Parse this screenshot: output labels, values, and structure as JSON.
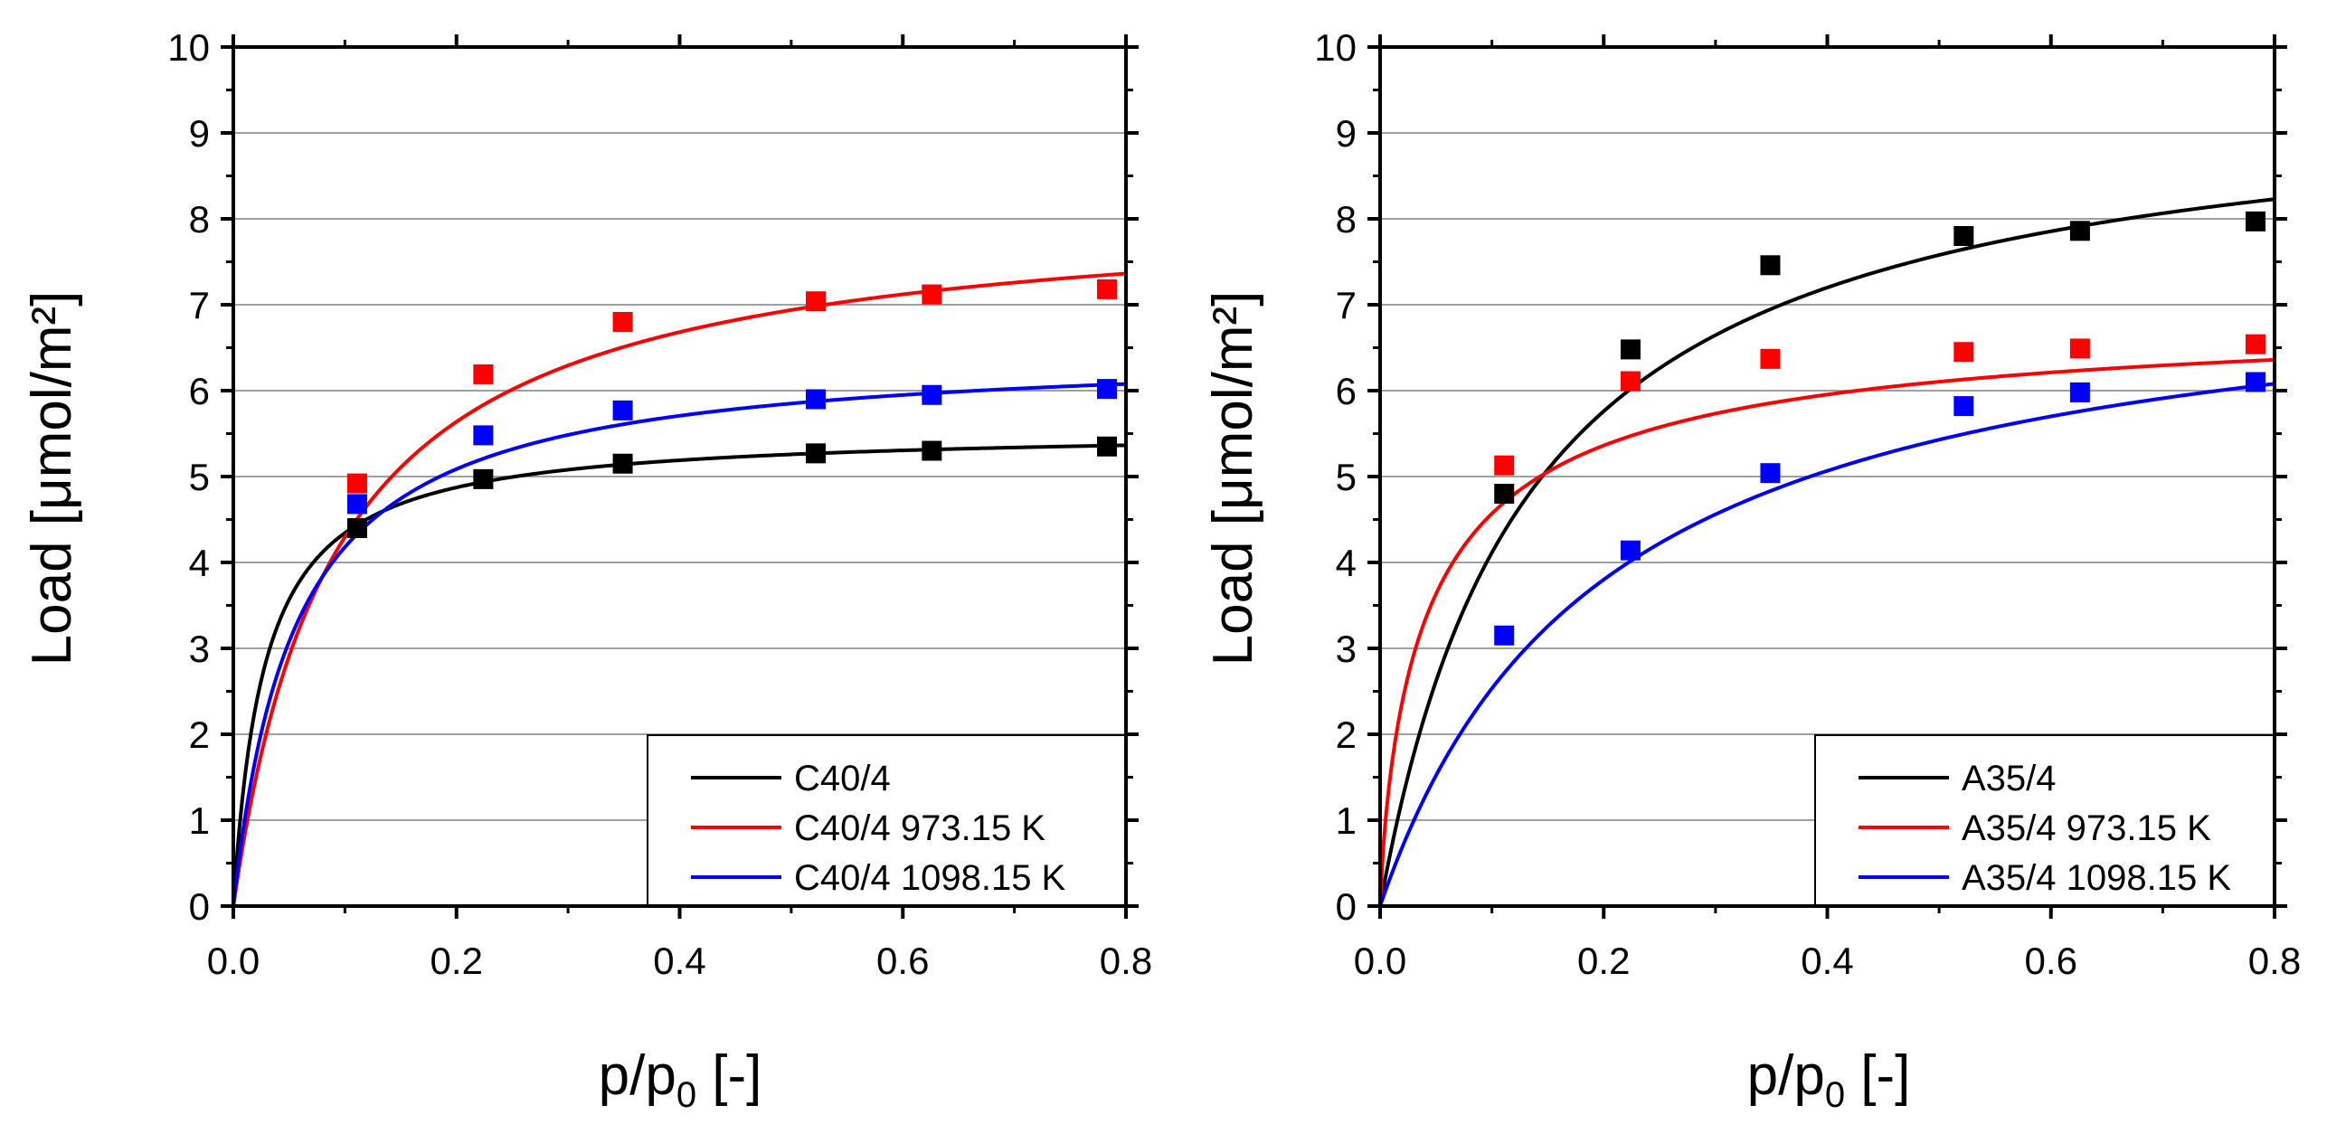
{
  "chart_data": [
    {
      "type": "scatter",
      "name": "left-panel",
      "title": "",
      "xlabel_main": "p/p",
      "xlabel_sub": "0",
      "xlabel_tail": " [-]",
      "ylabel": "Load [μmol/m²]",
      "xlim": [
        0.0,
        0.8
      ],
      "ylim": [
        0,
        10
      ],
      "xticks": [
        "0.0",
        "0.2",
        "0.4",
        "0.6",
        "0.8"
      ],
      "yticks": [
        "0",
        "1",
        "2",
        "3",
        "4",
        "5",
        "6",
        "7",
        "8",
        "9",
        "10"
      ],
      "grid": "horizontal",
      "legend_position": "bottom-right",
      "series": [
        {
          "name": "C40/4",
          "color": "#000000",
          "x": [
            0.111,
            0.224,
            0.349,
            0.522,
            0.626,
            0.783
          ],
          "y": [
            4.4,
            4.97,
            5.15,
            5.27,
            5.3,
            5.35
          ],
          "fit_curve": {
            "qmax": 5.55,
            "b": 36.0,
            "n": 1.0
          }
        },
        {
          "name": "C40/4 973.15 K",
          "color": "#ff0000",
          "x": [
            0.111,
            0.224,
            0.349,
            0.522,
            0.626,
            0.783
          ],
          "y": [
            4.92,
            6.19,
            6.8,
            7.04,
            7.12,
            7.18
          ],
          "fit_curve": {
            "qmax": 8.2,
            "b": 11.0,
            "n": 1.0
          }
        },
        {
          "name": "C40/4 1098.15 K",
          "color": "#0000ff",
          "x": [
            0.111,
            0.224,
            0.349,
            0.522,
            0.626,
            0.783
          ],
          "y": [
            4.68,
            5.48,
            5.77,
            5.9,
            5.95,
            6.02
          ],
          "fit_curve": {
            "qmax": 6.5,
            "b": 18.0,
            "n": 1.0
          }
        }
      ]
    },
    {
      "type": "scatter",
      "name": "right-panel",
      "title": "",
      "xlabel_main": "p/p",
      "xlabel_sub": "0",
      "xlabel_tail": " [-]",
      "ylabel": "Load [μmol/m²]",
      "xlim": [
        0.0,
        0.8
      ],
      "ylim": [
        0,
        10
      ],
      "xticks": [
        "0.0",
        "0.2",
        "0.4",
        "0.6",
        "0.8"
      ],
      "yticks": [
        "0",
        "1",
        "2",
        "3",
        "4",
        "5",
        "6",
        "7",
        "8",
        "9",
        "10"
      ],
      "grid": "horizontal",
      "legend_position": "bottom-right",
      "series": [
        {
          "name": "A35/4",
          "color": "#000000",
          "x": [
            0.111,
            0.224,
            0.349,
            0.522,
            0.626,
            0.783
          ],
          "y": [
            4.8,
            6.48,
            7.46,
            7.8,
            7.86,
            7.97
          ],
          "fit_curve": {
            "qmax": 9.6,
            "b": 7.5,
            "n": 1.0
          }
        },
        {
          "name": "A35/4 973.15 K",
          "color": "#ff0000",
          "x": [
            0.111,
            0.224,
            0.349,
            0.522,
            0.626,
            0.783
          ],
          "y": [
            5.13,
            6.11,
            6.37,
            6.45,
            6.49,
            6.54
          ],
          "fit_curve": {
            "qmax": 7.0,
            "b": 22.0,
            "n": 0.8
          }
        },
        {
          "name": "A35/4 1098.15 K",
          "color": "#0000ff",
          "x": [
            0.111,
            0.224,
            0.349,
            0.522,
            0.626,
            0.783
          ],
          "y": [
            3.15,
            4.14,
            5.04,
            5.82,
            5.98,
            6.1
          ],
          "fit_curve": {
            "qmax": 7.6,
            "b": 5.0,
            "n": 1.0
          }
        }
      ]
    }
  ]
}
